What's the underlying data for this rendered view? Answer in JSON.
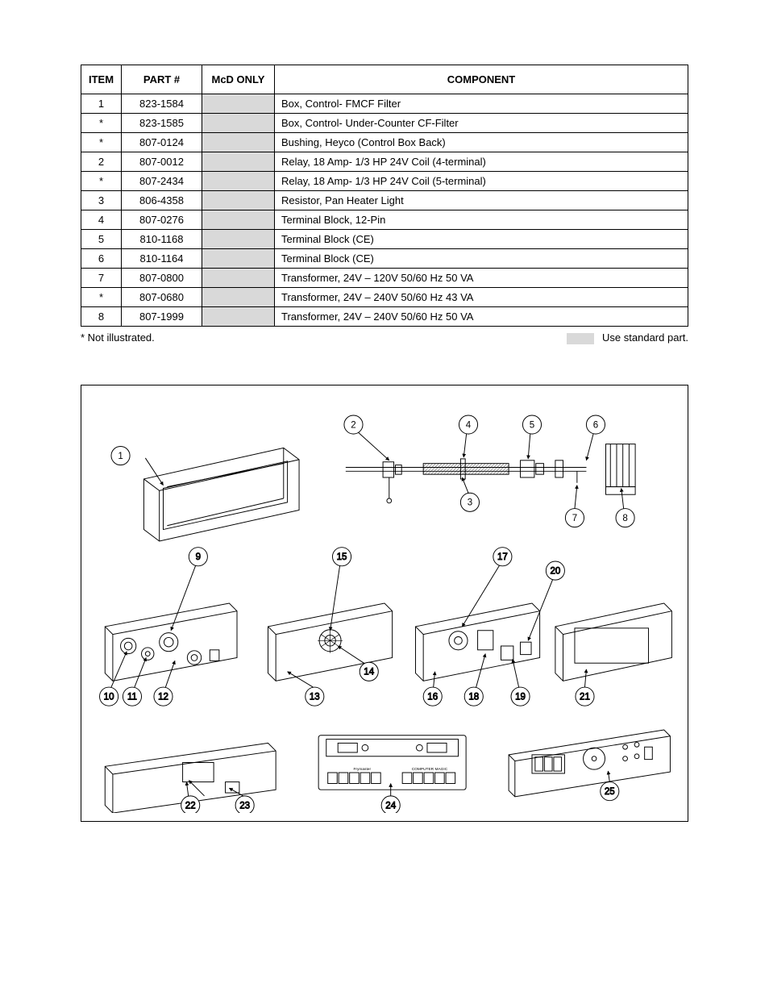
{
  "table": {
    "headers": [
      "ITEM",
      "PART #",
      "McD ONLY",
      "COMPONENT"
    ],
    "rows": [
      {
        "item": "1",
        "part": "823-1584",
        "mcd_shaded": true,
        "component": "Box, Control- FMCF Filter"
      },
      {
        "item": "*",
        "part": "823-1585",
        "mcd_shaded": true,
        "component": "Box, Control- Under-Counter CF-Filter"
      },
      {
        "item": "*",
        "part": "807-0124",
        "mcd_shaded": true,
        "component": "Bushing, Heyco (Control Box Back)"
      },
      {
        "item": "2",
        "part": "807-0012",
        "mcd_shaded": true,
        "component": "Relay, 18 Amp- 1/3 HP 24V Coil (4-terminal)"
      },
      {
        "item": "*",
        "part": "807-2434",
        "mcd_shaded": true,
        "component": "Relay, 18 Amp- 1/3 HP 24V Coil (5-terminal)"
      },
      {
        "item": "3",
        "part": "806-4358",
        "mcd_shaded": true,
        "component": "Resistor, Pan Heater Light"
      },
      {
        "item": "4",
        "part": "807-0276",
        "mcd_shaded": true,
        "component": "Terminal Block, 12-Pin"
      },
      {
        "item": "5",
        "part": "810-1168",
        "mcd_shaded": true,
        "component": "Terminal Block (CE)"
      },
      {
        "item": "6",
        "part": "810-1164",
        "mcd_shaded": true,
        "component": "Terminal Block (CE)"
      },
      {
        "item": "7",
        "part": "807-0800",
        "mcd_shaded": true,
        "component": "Transformer, 24V – 120V 50/60 Hz 50 VA"
      },
      {
        "item": "*",
        "part": "807-0680",
        "mcd_shaded": true,
        "component": "Transformer, 24V – 240V 50/60 Hz 43 VA"
      },
      {
        "item": "8",
        "part": "807-1999",
        "mcd_shaded": true,
        "component": "Transformer, 24V – 240V 50/60 Hz 50 VA"
      }
    ]
  },
  "notes": {
    "left": "* Not illustrated.",
    "right": "Use standard part."
  },
  "diagram": {
    "callouts": [
      "1",
      "2",
      "3",
      "4",
      "5",
      "6",
      "7",
      "8",
      "9",
      "10",
      "11",
      "12",
      "13",
      "14",
      "15",
      "16",
      "17",
      "18",
      "19",
      "20",
      "21",
      "22",
      "23",
      "24",
      "25"
    ]
  }
}
